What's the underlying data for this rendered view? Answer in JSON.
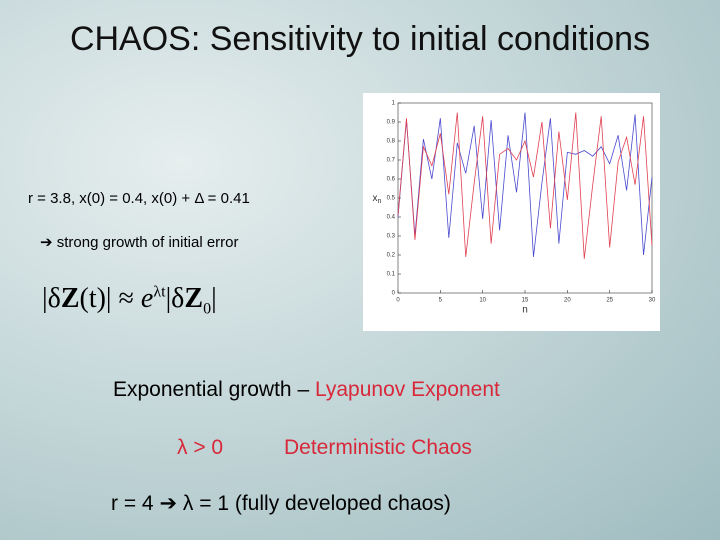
{
  "title": "CHAOS: Sensitivity to initial conditions",
  "params": "r = 3.8, x(0) = 0.4, x(0) + Δ = 0.41",
  "note": {
    "arrow": "➔",
    "text": "strong growth of initial error"
  },
  "formula": {
    "lhs_open": "|δ",
    "lhs_bold": "Z",
    "lhs_close": "(t)|",
    "approx": "≈",
    "base": "e",
    "exp": "λt",
    "rhs_open": "|δ",
    "rhs_bold": "Z",
    "rhs_sub": "0",
    "rhs_close": "|"
  },
  "growth": {
    "text": "Exponential growth – ",
    "highlight": "Lyapunov Exponent"
  },
  "condition": {
    "lambda": "λ > 0",
    "result": "Deterministic Chaos"
  },
  "special": {
    "lhs": "r = 4",
    "arrow": "➔",
    "rhs": "λ = 1 (fully developed chaos)"
  },
  "chart_data": {
    "type": "line",
    "xlabel": "n",
    "ylabel": "x",
    "ylabel_sub": "n",
    "x": [
      0,
      1,
      2,
      3,
      4,
      5,
      6,
      7,
      8,
      9,
      10,
      11,
      12,
      13,
      14,
      15,
      16,
      17,
      18,
      19,
      20,
      21,
      22,
      23,
      24,
      25,
      26,
      27,
      28,
      29,
      30
    ],
    "series": [
      {
        "color": "#4a4ad0",
        "values": [
          0.4,
          0.91,
          0.3,
          0.81,
          0.6,
          0.92,
          0.29,
          0.79,
          0.63,
          0.88,
          0.39,
          0.91,
          0.33,
          0.83,
          0.53,
          0.95,
          0.19,
          0.58,
          0.92,
          0.26,
          0.74,
          0.73,
          0.75,
          0.72,
          0.77,
          0.68,
          0.83,
          0.54,
          0.94,
          0.2,
          0.61
        ]
      },
      {
        "color": "#e04050",
        "values": [
          0.41,
          0.92,
          0.28,
          0.77,
          0.67,
          0.84,
          0.52,
          0.95,
          0.19,
          0.58,
          0.93,
          0.26,
          0.73,
          0.76,
          0.7,
          0.8,
          0.61,
          0.9,
          0.34,
          0.85,
          0.49,
          0.95,
          0.18,
          0.57,
          0.93,
          0.24,
          0.69,
          0.82,
          0.57,
          0.93,
          0.25
        ]
      }
    ],
    "xlim": [
      0,
      30
    ],
    "xticks": [
      0,
      5,
      10,
      15,
      20,
      25,
      30
    ],
    "ylim": [
      0,
      1
    ],
    "yticks": [
      0,
      0.1,
      0.2,
      0.3,
      0.4,
      0.5,
      0.6,
      0.7,
      0.8,
      0.9,
      1
    ]
  }
}
